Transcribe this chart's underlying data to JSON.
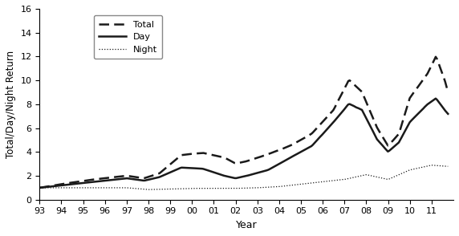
{
  "title": "",
  "xlabel": "Year",
  "ylabel": "Total/Day/Night Return",
  "xlim_start": 1993.0,
  "xlim_end": 2012.0,
  "ylim": [
    0,
    16
  ],
  "yticks": [
    0,
    2,
    4,
    6,
    8,
    10,
    12,
    14,
    16
  ],
  "xtick_labels": [
    "93",
    "94",
    "95",
    "96",
    "97",
    "98",
    "99",
    "00",
    "01",
    "02",
    "03",
    "04",
    "05",
    "06",
    "07",
    "08",
    "09",
    "10",
    "11"
  ],
  "xtick_positions": [
    1993,
    1994,
    1995,
    1996,
    1997,
    1998,
    1999,
    2000,
    2001,
    2002,
    2003,
    2004,
    2005,
    2006,
    2007,
    2008,
    2009,
    2010,
    2011
  ],
  "line_color": "#1a1a1a",
  "total_anchors_t": [
    1993.0,
    1994.0,
    1995.5,
    1997.0,
    1997.8,
    1998.5,
    1999.5,
    2000.5,
    2001.5,
    2002.0,
    2002.5,
    2003.5,
    2004.5,
    2005.5,
    2006.5,
    2007.2,
    2007.8,
    2008.5,
    2009.0,
    2009.5,
    2010.0,
    2010.8,
    2011.2,
    2011.6,
    2011.75
  ],
  "total_anchors_v": [
    1.0,
    1.3,
    1.7,
    2.0,
    1.8,
    2.2,
    3.7,
    3.9,
    3.5,
    3.0,
    3.2,
    3.8,
    4.5,
    5.5,
    7.5,
    10.0,
    9.0,
    6.0,
    4.5,
    5.5,
    8.5,
    10.5,
    12.0,
    10.0,
    9.0
  ],
  "day_anchors_t": [
    1993.0,
    1994.0,
    1995.5,
    1997.0,
    1997.8,
    1998.5,
    1999.5,
    2000.5,
    2001.5,
    2002.0,
    2002.5,
    2003.5,
    2004.5,
    2005.5,
    2006.5,
    2007.2,
    2007.8,
    2008.5,
    2009.0,
    2009.5,
    2010.0,
    2010.8,
    2011.2,
    2011.6,
    2011.75
  ],
  "day_anchors_v": [
    1.0,
    1.2,
    1.5,
    1.8,
    1.6,
    1.9,
    2.7,
    2.6,
    2.0,
    1.8,
    2.0,
    2.5,
    3.5,
    4.5,
    6.5,
    8.0,
    7.5,
    5.0,
    4.0,
    4.8,
    6.5,
    8.0,
    8.5,
    7.5,
    7.2
  ],
  "night_anchors_t": [
    1993.0,
    1994.0,
    1995.0,
    1996.0,
    1997.0,
    1998.0,
    1999.0,
    2000.0,
    2001.0,
    2002.0,
    2003.0,
    2004.0,
    2005.0,
    2006.0,
    2007.0,
    2008.0,
    2009.0,
    2010.0,
    2011.0,
    2011.75
  ],
  "night_anchors_v": [
    1.0,
    1.0,
    1.0,
    1.0,
    1.0,
    0.85,
    0.9,
    0.95,
    0.95,
    0.95,
    1.0,
    1.1,
    1.3,
    1.5,
    1.7,
    2.1,
    1.7,
    2.5,
    2.9,
    2.8
  ]
}
